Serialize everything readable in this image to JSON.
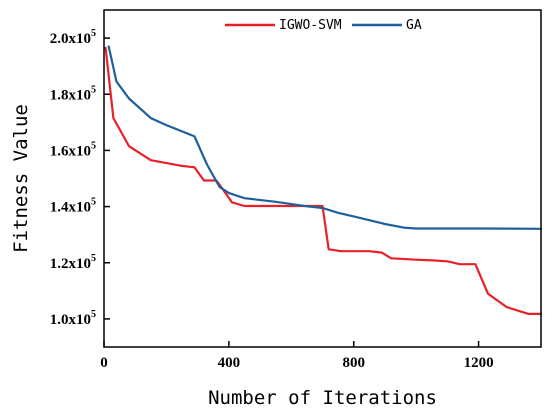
{
  "chart_data": {
    "type": "line",
    "title": "",
    "xlabel": "Number of Iterations",
    "ylabel": "Fitness Value",
    "xlim": [
      0,
      1400
    ],
    "ylim": [
      90000,
      210000
    ],
    "x_ticks": [
      0,
      400,
      800,
      1200
    ],
    "x_tick_labels": [
      "0",
      "400",
      "800",
      "1200"
    ],
    "y_ticks": [
      100000,
      120000,
      140000,
      160000,
      180000,
      200000
    ],
    "y_tick_labels": [
      {
        "base": "1.0x10",
        "exp": "5"
      },
      {
        "base": "1.2x10",
        "exp": "5"
      },
      {
        "base": "1.4x10",
        "exp": "5"
      },
      {
        "base": "1.6x10",
        "exp": "5"
      },
      {
        "base": "1.8x10",
        "exp": "5"
      },
      {
        "base": "2.0x10",
        "exp": "5"
      }
    ],
    "grid": false,
    "legend_position": "top-center",
    "series": [
      {
        "name": "IGWO-SVM",
        "color": "#e8202a",
        "points": [
          [
            5,
            196500
          ],
          [
            30,
            171500
          ],
          [
            80,
            161500
          ],
          [
            150,
            156500
          ],
          [
            200,
            155500
          ],
          [
            250,
            154500
          ],
          [
            290,
            154000
          ],
          [
            320,
            149300
          ],
          [
            360,
            149300
          ],
          [
            375,
            147000
          ],
          [
            410,
            141500
          ],
          [
            450,
            140200
          ],
          [
            600,
            140200
          ],
          [
            700,
            140200
          ],
          [
            720,
            124800
          ],
          [
            760,
            124100
          ],
          [
            850,
            124100
          ],
          [
            890,
            123600
          ],
          [
            920,
            121600
          ],
          [
            1000,
            121100
          ],
          [
            1060,
            120800
          ],
          [
            1100,
            120500
          ],
          [
            1140,
            119500
          ],
          [
            1190,
            119500
          ],
          [
            1230,
            109000
          ],
          [
            1290,
            104200
          ],
          [
            1360,
            101800
          ],
          [
            1400,
            101800
          ]
        ]
      },
      {
        "name": "GA",
        "color": "#1f5f9c",
        "points": [
          [
            15,
            197000
          ],
          [
            40,
            184500
          ],
          [
            80,
            178500
          ],
          [
            150,
            171500
          ],
          [
            200,
            169000
          ],
          [
            290,
            165000
          ],
          [
            330,
            155000
          ],
          [
            370,
            147000
          ],
          [
            400,
            144800
          ],
          [
            450,
            143000
          ],
          [
            550,
            141700
          ],
          [
            650,
            140100
          ],
          [
            700,
            139500
          ],
          [
            750,
            137800
          ],
          [
            800,
            136500
          ],
          [
            900,
            133800
          ],
          [
            960,
            132500
          ],
          [
            1000,
            132200
          ],
          [
            1200,
            132200
          ],
          [
            1400,
            132100
          ]
        ]
      }
    ]
  }
}
